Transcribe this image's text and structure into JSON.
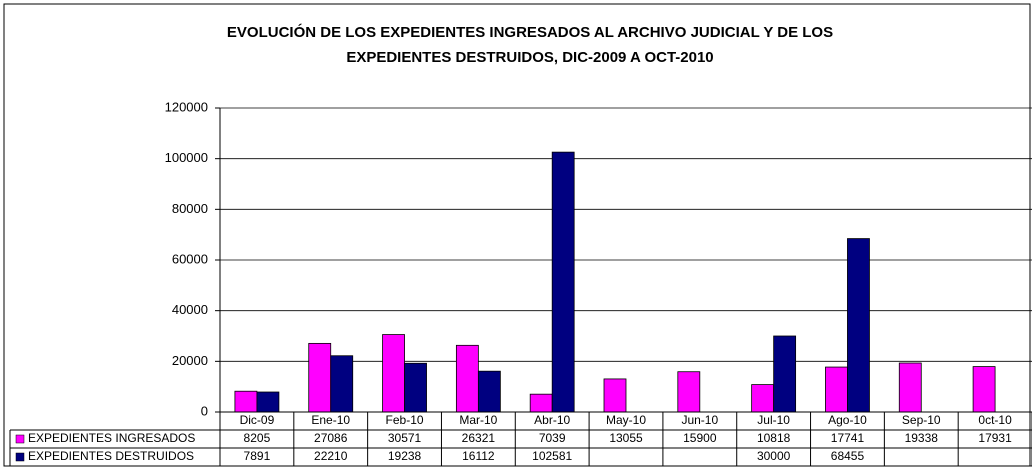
{
  "chart_data": {
    "type": "bar",
    "title": "EVOLUCIÓN DE LOS EXPEDIENTES INGRESADOS AL ARCHIVO JUDICIAL Y DE LOS",
    "subtitle": "EXPEDIENTES DESTRUIDOS, DIC-2009 A OCT-2010",
    "categories": [
      "Dic-09",
      "Ene-10",
      "Feb-10",
      "Mar-10",
      "Abr-10",
      "May-10",
      "Jun-10",
      "Jul-10",
      "Ago-10",
      "Sep-10",
      "0ct-10"
    ],
    "series": [
      {
        "name": "EXPEDIENTES INGRESADOS",
        "color": "#ff00ff",
        "values": [
          8205,
          27086,
          30571,
          26321,
          7039,
          13055,
          15900,
          10818,
          17741,
          19338,
          17931
        ]
      },
      {
        "name": "EXPEDIENTES DESTRUIDOS",
        "color": "#000080",
        "values": [
          7891,
          22210,
          19238,
          16112,
          102581,
          null,
          null,
          30000,
          68455,
          null,
          null
        ]
      }
    ],
    "ylim": [
      0,
      120000
    ],
    "yticks": [
      0,
      20000,
      40000,
      60000,
      80000,
      100000,
      120000
    ],
    "grid": true
  }
}
